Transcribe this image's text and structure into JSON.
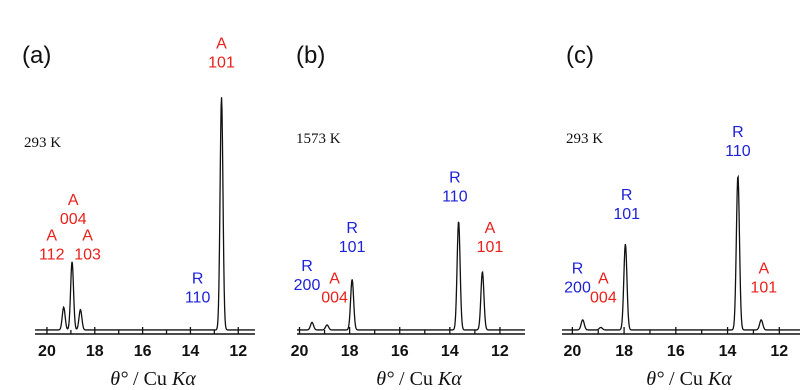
{
  "colors": {
    "anatase": "#e8211c",
    "rutile": "#1e22d6",
    "axis": "#111111",
    "trace": "#111111"
  },
  "chart_data": [
    {
      "type": "line",
      "panel": "(a)",
      "temperature": "293 K",
      "xlabel_theta": "θ°",
      "xlabel_rest": " / Cu ",
      "xlabel_k": "Kα",
      "xlim": [
        20.5,
        11.3
      ],
      "ylim": [
        0,
        1.0
      ],
      "xticks": [
        "20",
        "18",
        "16",
        "14",
        "12"
      ],
      "peaks": [
        {
          "phase": "A",
          "hkl": "112",
          "x": 19.3,
          "y": 0.09,
          "label_x": 19.8,
          "label_y": 0.29
        },
        {
          "phase": "A",
          "hkl": "004",
          "x": 18.95,
          "y": 0.27,
          "label_x": 18.9,
          "label_y": 0.43
        },
        {
          "phase": "A",
          "hkl": "103",
          "x": 18.6,
          "y": 0.08,
          "label_x": 18.3,
          "label_y": 0.29
        },
        {
          "phase": "R",
          "hkl": "110",
          "x": 13.6,
          "y": 0.0,
          "label_x": 13.7,
          "label_y": 0.12
        },
        {
          "phase": "A",
          "hkl": "101",
          "x": 12.7,
          "y": 0.92,
          "label_x": 12.7,
          "label_y": 1.05
        }
      ]
    },
    {
      "type": "line",
      "panel": "(b)",
      "temperature": "1573 K",
      "xlabel_theta": "θ°",
      "xlabel_rest": " / Cu ",
      "xlabel_k": "Kα",
      "xlim": [
        20.1,
        11.0
      ],
      "ylim": [
        0,
        1.0
      ],
      "xticks": [
        "20",
        "18",
        "16",
        "14",
        "12"
      ],
      "peaks": [
        {
          "phase": "R",
          "hkl": "200",
          "x": 19.5,
          "y": 0.03,
          "label_x": 19.7,
          "label_y": 0.17
        },
        {
          "phase": "A",
          "hkl": "004",
          "x": 18.9,
          "y": 0.02,
          "label_x": 18.6,
          "label_y": 0.12
        },
        {
          "phase": "R",
          "hkl": "101",
          "x": 17.9,
          "y": 0.2,
          "label_x": 17.9,
          "label_y": 0.32
        },
        {
          "phase": "R",
          "hkl": "110",
          "x": 13.65,
          "y": 0.43,
          "label_x": 13.8,
          "label_y": 0.52
        },
        {
          "phase": "A",
          "hkl": "101",
          "x": 12.7,
          "y": 0.23,
          "label_x": 12.4,
          "label_y": 0.32
        }
      ]
    },
    {
      "type": "line",
      "panel": "(c)",
      "temperature": "293 K",
      "xlabel_theta": "θ°",
      "xlabel_rest": " / Cu ",
      "xlabel_k": "Kα",
      "xlim": [
        20.4,
        11.2
      ],
      "ylim": [
        0,
        1.0
      ],
      "xticks": [
        "20",
        "18",
        "16",
        "14",
        "12"
      ],
      "peaks": [
        {
          "phase": "R",
          "hkl": "200",
          "x": 19.6,
          "y": 0.04,
          "label_x": 19.8,
          "label_y": 0.16
        },
        {
          "phase": "A",
          "hkl": "004",
          "x": 18.9,
          "y": 0.01,
          "label_x": 18.8,
          "label_y": 0.12
        },
        {
          "phase": "R",
          "hkl": "101",
          "x": 17.95,
          "y": 0.34,
          "label_x": 17.9,
          "label_y": 0.45
        },
        {
          "phase": "R",
          "hkl": "110",
          "x": 13.6,
          "y": 0.61,
          "label_x": 13.6,
          "label_y": 0.7
        },
        {
          "phase": "A",
          "hkl": "101",
          "x": 12.7,
          "y": 0.04,
          "label_x": 12.6,
          "label_y": 0.16
        }
      ]
    }
  ]
}
